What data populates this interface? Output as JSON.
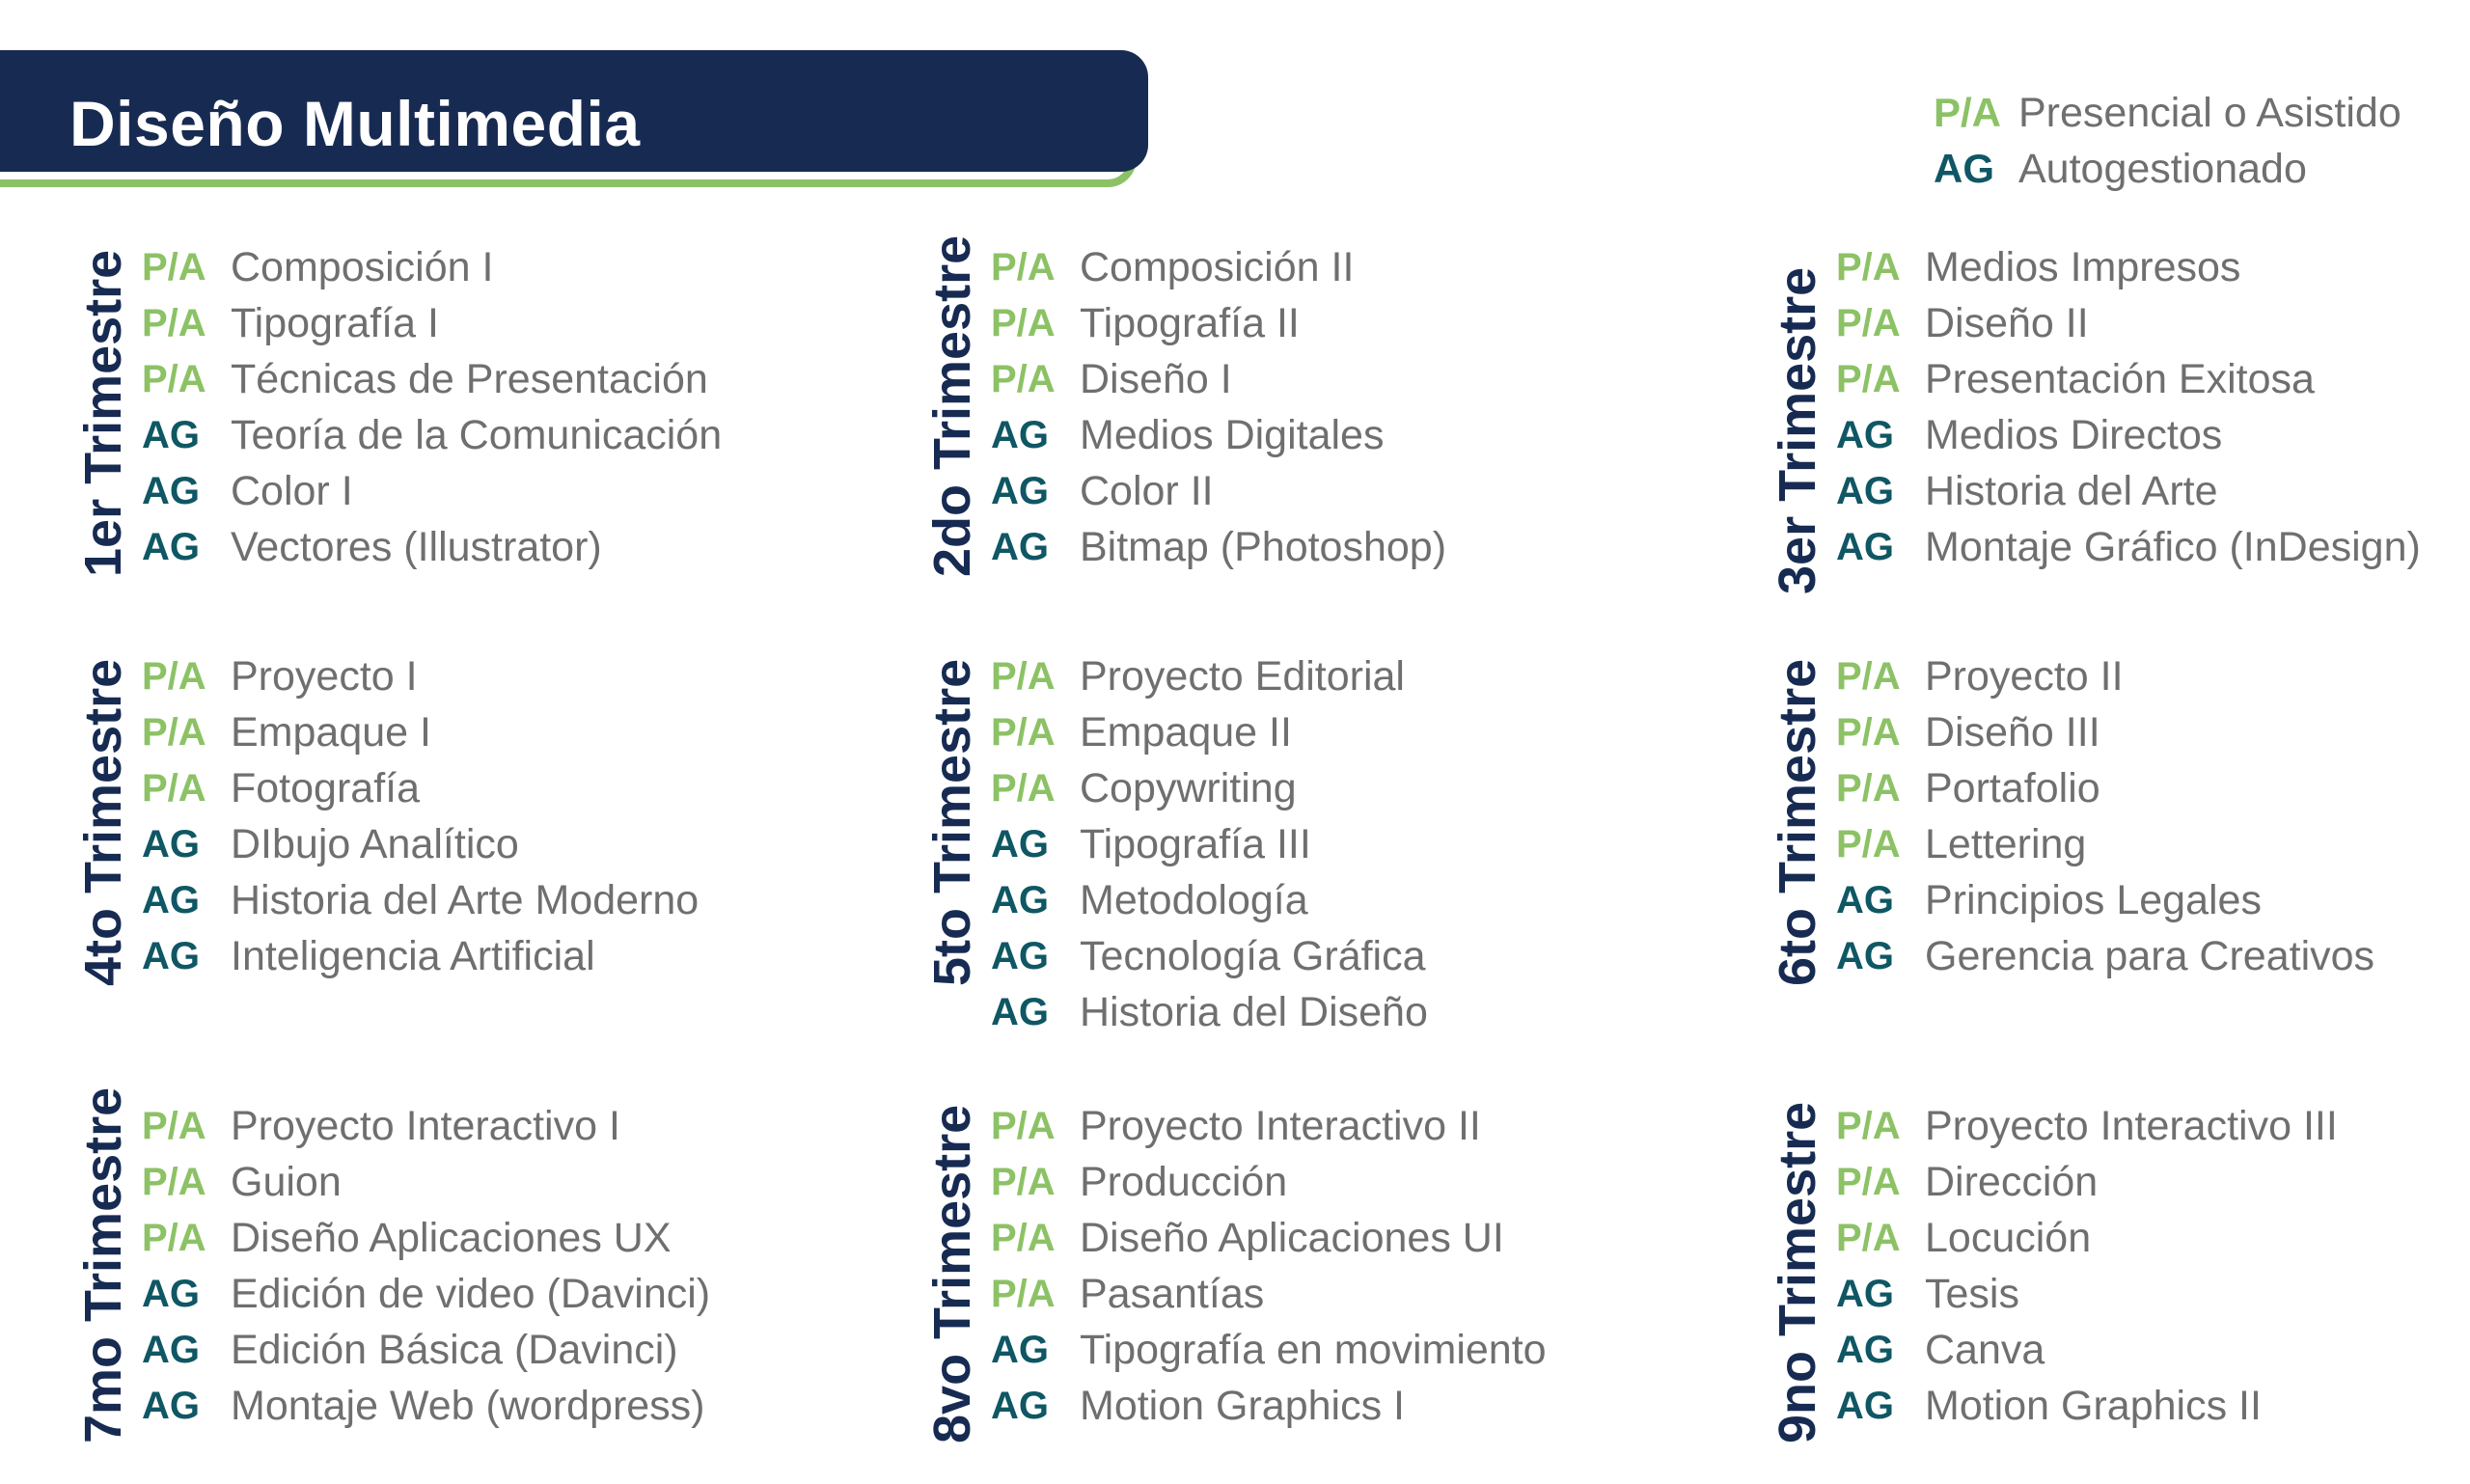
{
  "header": {
    "title": "Diseño Multimedia"
  },
  "legend": [
    {
      "code": "P/A",
      "text": "Presencial o Asistido",
      "type": "pa"
    },
    {
      "code": "AG",
      "text": "Autogestionado",
      "type": "ag"
    }
  ],
  "colors": {
    "navy": "#172b52",
    "green": "#8cc265",
    "teal": "#0f5764",
    "gray": "#6f6f6f"
  },
  "quarters": [
    {
      "title": "1er Trimestre",
      "courses": [
        {
          "code": "P/A",
          "name": "Composición I"
        },
        {
          "code": "P/A",
          "name": "Tipografía I"
        },
        {
          "code": "P/A",
          "name": "Técnicas de Presentación"
        },
        {
          "code": "AG",
          "name": "Teoría de la Comunicación"
        },
        {
          "code": "AG",
          "name": "Color I"
        },
        {
          "code": "AG",
          "name": "Vectores (Illustrator)"
        }
      ]
    },
    {
      "title": "2do Trimestre",
      "courses": [
        {
          "code": "P/A",
          "name": "Composición II"
        },
        {
          "code": "P/A",
          "name": "Tipografía II"
        },
        {
          "code": "P/A",
          "name": "Diseño I"
        },
        {
          "code": "AG",
          "name": "Medios Digitales"
        },
        {
          "code": "AG",
          "name": "Color II"
        },
        {
          "code": "AG",
          "name": "Bitmap (Photoshop)"
        }
      ]
    },
    {
      "title": "3er Trimestre",
      "courses": [
        {
          "code": "P/A",
          "name": "Medios Impresos"
        },
        {
          "code": "P/A",
          "name": "Diseño II"
        },
        {
          "code": "P/A",
          "name": "Presentación Exitosa"
        },
        {
          "code": "AG",
          "name": "Medios Directos"
        },
        {
          "code": "AG",
          "name": "Historia del Arte"
        },
        {
          "code": "AG",
          "name": "Montaje Gráfico (InDesign)"
        }
      ]
    },
    {
      "title": "4to Trimestre",
      "courses": [
        {
          "code": "P/A",
          "name": "Proyecto I"
        },
        {
          "code": "P/A",
          "name": "Empaque I"
        },
        {
          "code": "P/A",
          "name": "Fotografía"
        },
        {
          "code": "AG",
          "name": "DIbujo Analítico"
        },
        {
          "code": "AG",
          "name": "Historia del Arte Moderno"
        },
        {
          "code": "AG",
          "name": "Inteligencia Artificial"
        }
      ]
    },
    {
      "title": "5to Trimestre",
      "courses": [
        {
          "code": "P/A",
          "name": "Proyecto Editorial"
        },
        {
          "code": "P/A",
          "name": "Empaque II"
        },
        {
          "code": "P/A",
          "name": "Copywriting"
        },
        {
          "code": "AG",
          "name": "Tipografía III"
        },
        {
          "code": "AG",
          "name": "Metodología"
        },
        {
          "code": "AG",
          "name": "Tecnología Gráfica"
        },
        {
          "code": "AG",
          "name": "Historia del Diseño"
        }
      ]
    },
    {
      "title": "6to Trimestre",
      "courses": [
        {
          "code": "P/A",
          "name": "Proyecto II"
        },
        {
          "code": "P/A",
          "name": "Diseño III"
        },
        {
          "code": "P/A",
          "name": "Portafolio"
        },
        {
          "code": "P/A",
          "name": "Lettering"
        },
        {
          "code": "AG",
          "name": "Principios Legales"
        },
        {
          "code": "AG",
          "name": "Gerencia para Creativos"
        }
      ]
    },
    {
      "title": "7mo Trimestre",
      "courses": [
        {
          "code": "P/A",
          "name": "Proyecto Interactivo I"
        },
        {
          "code": "P/A",
          "name": "Guion"
        },
        {
          "code": "P/A",
          "name": "Diseño Aplicaciones UX"
        },
        {
          "code": "AG",
          "name": "Edición de video (Davinci)"
        },
        {
          "code": "AG",
          "name": "Edición Básica (Davinci)"
        },
        {
          "code": "AG",
          "name": "Montaje Web (wordpress)"
        }
      ]
    },
    {
      "title": "8vo Trimestre",
      "courses": [
        {
          "code": "P/A",
          "name": "Proyecto Interactivo II"
        },
        {
          "code": "P/A",
          "name": "Producción"
        },
        {
          "code": "P/A",
          "name": "Diseño Aplicaciones UI"
        },
        {
          "code": "P/A",
          "name": "Pasantías"
        },
        {
          "code": "AG",
          "name": "Tipografía en movimiento"
        },
        {
          "code": "AG",
          "name": "Motion Graphics I"
        }
      ]
    },
    {
      "title": "9no Trimestre",
      "courses": [
        {
          "code": "P/A",
          "name": "Proyecto Interactivo III"
        },
        {
          "code": "P/A",
          "name": "Dirección"
        },
        {
          "code": "P/A",
          "name": "Locución"
        },
        {
          "code": "AG",
          "name": "Tesis"
        },
        {
          "code": "AG",
          "name": "Canva"
        },
        {
          "code": "AG",
          "name": "Motion Graphics II"
        }
      ]
    }
  ]
}
